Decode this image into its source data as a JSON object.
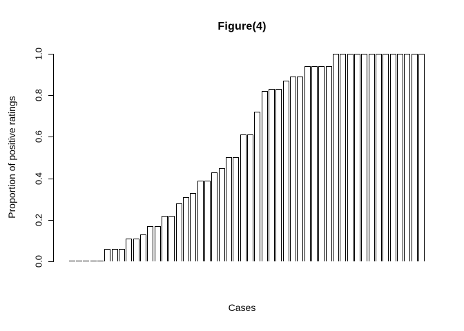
{
  "figure": {
    "background": "#ffffff",
    "foreground": "#000000"
  },
  "chart_data": {
    "type": "bar",
    "title": "Figure(4)",
    "xlabel": "Cases",
    "ylabel": "Proportion of positive ratings",
    "ylim": [
      0.0,
      1.0
    ],
    "yticks": [
      "0.0",
      "0.2",
      "0.4",
      "0.6",
      "0.8",
      "1.0"
    ],
    "ytick_values": [
      0.0,
      0.2,
      0.4,
      0.6,
      0.8,
      1.0
    ],
    "grid": "off",
    "legend": "none",
    "bar_fill": "#ffffff",
    "bar_border": "#000000",
    "n_bars": 50,
    "values": [
      0,
      0,
      0,
      0,
      0,
      0.06,
      0.06,
      0.06,
      0.11,
      0.11,
      0.13,
      0.17,
      0.17,
      0.22,
      0.22,
      0.28,
      0.31,
      0.33,
      0.39,
      0.39,
      0.43,
      0.45,
      0.5,
      0.5,
      0.61,
      0.61,
      0.72,
      0.82,
      0.83,
      0.83,
      0.87,
      0.89,
      0.89,
      0.94,
      0.94,
      0.94,
      0.94,
      1,
      1,
      1,
      1,
      1,
      1,
      1,
      1,
      1,
      1,
      1,
      1,
      1
    ]
  }
}
